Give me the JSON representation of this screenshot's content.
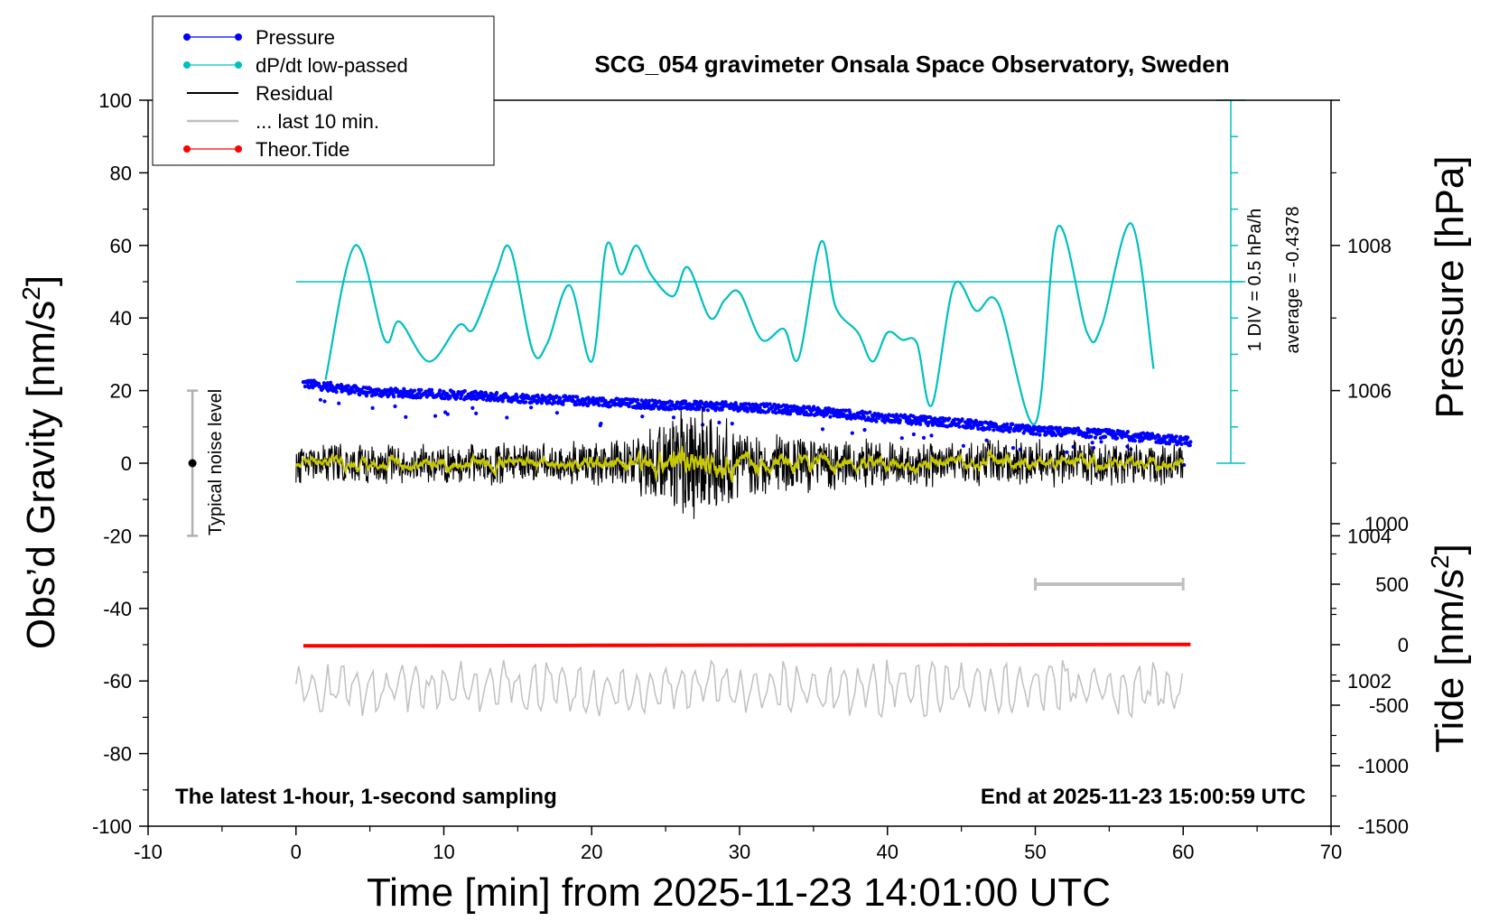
{
  "chart_data": {
    "type": "line",
    "title": "SCG_054 gravimeter Onsala Space Observatory, Sweden",
    "xlabel": "Time [min] from 2025-11-23 14:01:00 UTC",
    "ylabel": "Obs’d Gravity [nm/s²]",
    "ylabel_main": "Obs’d Gravity [nm/s",
    "ylabel_sup": "2",
    "ylabel_end": "]",
    "y2label": "Pressure [hPa]",
    "y3label_main": "Tide [nm/s",
    "y3label_sup": "2",
    "y3label_end": "]",
    "xlim": [
      -10,
      70
    ],
    "ylim": [
      -100,
      100
    ],
    "pressure_lim": [
      1000,
      1010
    ],
    "tide_lim": [
      -1500,
      1500
    ],
    "x_ticks": [
      "-10",
      "0",
      "10",
      "20",
      "30",
      "40",
      "50",
      "60",
      "70"
    ],
    "y_ticks": [
      "100",
      "80",
      "60",
      "40",
      "20",
      "0",
      "-20",
      "-40",
      "-60",
      "-80",
      "-100"
    ],
    "pressure_ticks": [
      "1008",
      "1006",
      "1004",
      "1002"
    ],
    "tide_ticks": [
      "1000",
      "500",
      "0",
      "-500",
      "-1000",
      "-1500"
    ],
    "note_left": "The latest 1-hour, 1-second sampling",
    "note_right": "End at 2025-11-23 15:00:59 UTC",
    "noise_label": "Typical noise level",
    "dpdt_scale_text": "1 DIV = 0.5 hPa/h",
    "dpdt_average_text": "average = -0.4378",
    "legend": [
      {
        "label": "Pressure",
        "color": "#0000ff",
        "marker": true
      },
      {
        "label": "dP/dt low-passed",
        "color": "#00c0c0",
        "marker": true
      },
      {
        "label": "Residual",
        "color": "#000000",
        "marker": false
      },
      {
        "label": "... last 10 min.",
        "color": "#c0c0c0",
        "marker": false
      },
      {
        "label": "Theor.Tide",
        "color": "#ff0000",
        "marker": true
      }
    ],
    "series": [
      {
        "name": "Pressure",
        "color": "#0000ff",
        "units": "hPa",
        "x": [
          0.5,
          5,
          10,
          15,
          20,
          25,
          30,
          35,
          40,
          45,
          50,
          55,
          60.5
        ],
        "y": [
          1006.1,
          1005.98,
          1005.95,
          1005.9,
          1005.85,
          1005.8,
          1005.78,
          1005.72,
          1005.62,
          1005.55,
          1005.45,
          1005.4,
          1005.3
        ]
      },
      {
        "name": "dP/dt low-passed",
        "color": "#00c0c0",
        "units": "nm/s2 (plotted on gravity axis)",
        "x": [
          2,
          4,
          6,
          7,
          9,
          11,
          12,
          13.5,
          14.5,
          16,
          17,
          18.5,
          20,
          21,
          22,
          23,
          24,
          25.5,
          26.5,
          28,
          29,
          30,
          31.5,
          33,
          34,
          35.5,
          36.5,
          38,
          39,
          40,
          41,
          42,
          43,
          44.5,
          46,
          47.5,
          50,
          51.5,
          53.5,
          54.5,
          56.5,
          58
        ],
        "y": [
          23,
          60,
          34,
          39,
          28,
          38,
          37,
          52,
          59,
          31,
          33,
          49,
          28,
          60,
          52,
          60,
          52,
          46,
          54,
          40,
          45,
          47,
          34,
          37,
          29,
          61,
          43,
          36,
          28,
          36,
          34,
          33,
          16,
          49,
          42,
          44,
          11,
          65,
          36,
          38,
          66,
          26
        ]
      },
      {
        "name": "Residual",
        "color": "#000000",
        "units": "nm/s2",
        "x": [
          0,
          60
        ],
        "amplitude_envelope": {
          "x": [
            0,
            20,
            23,
            26.5,
            30,
            33,
            40,
            50,
            60
          ],
          "y": [
            7,
            7,
            10,
            20,
            13,
            10,
            8,
            8,
            7
          ]
        }
      },
      {
        "name": "... last 10 min.",
        "color": "#c0c0c0",
        "units": "nm/s2",
        "x": [
          0,
          60
        ],
        "center": -62,
        "amplitude": 7
      },
      {
        "name": "Theor.Tide",
        "color": "#ff0000",
        "units": "nm/s2 (tide axis)",
        "x": [
          0.5,
          10,
          20,
          30,
          40,
          50,
          60.5
        ],
        "y": [
          -10,
          -8,
          -6,
          -4,
          -2,
          0,
          2
        ]
      }
    ],
    "noise_level": {
      "x": -7,
      "center": 0,
      "range": [
        -20,
        20
      ]
    },
    "last10_bar": {
      "x": [
        50,
        60
      ],
      "y_tide": 500
    },
    "dpdt_baseline": 50,
    "grid": false,
    "legend_position": "top-left"
  },
  "colors": {
    "pressure": "#0000ff",
    "dpdt": "#00c0c0",
    "residual": "#000000",
    "residual_lowpass": "#c8c800",
    "last10": "#c0c0c0",
    "tide": "#ff0000"
  }
}
